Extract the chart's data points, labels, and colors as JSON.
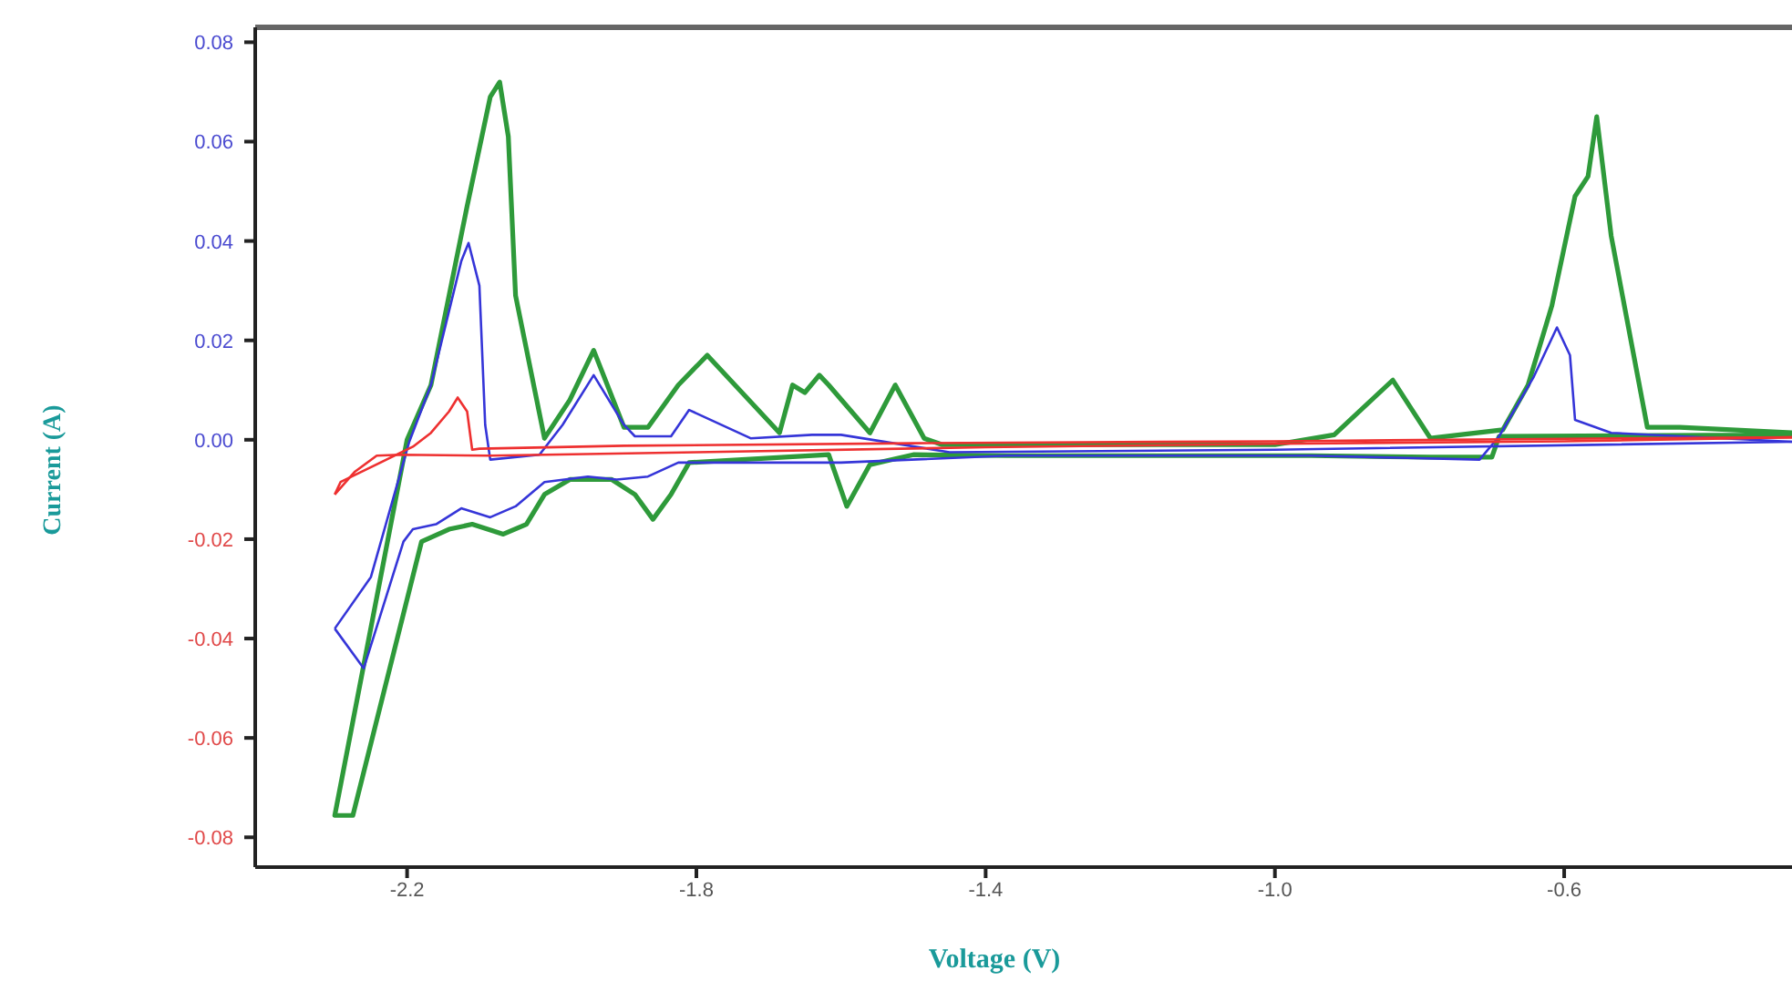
{
  "chart_data": {
    "type": "line",
    "xlabel": "Voltage (V)",
    "ylabel": "Current (A)",
    "xlim": [
      -2.41,
      -0.285
    ],
    "ylim": [
      -0.086,
      0.083
    ],
    "xticks": [
      -2.2,
      -1.8,
      -1.4,
      {
        "value": -1.0,
        "label": "-1.0"
      },
      -0.6
    ],
    "yticks": [
      0.08,
      0.06,
      0.04,
      0.02,
      {
        "value": 0,
        "label": "0.00"
      },
      -0.02,
      -0.04,
      -0.06,
      -0.08
    ],
    "grid": false,
    "legend": false,
    "marker": "none",
    "line_style": "solid",
    "series": [
      {
        "color": "#2e9a3a",
        "x": [
          -0.285,
          -0.44,
          -0.485,
          -0.535,
          -0.555,
          -0.567,
          -0.585,
          -0.617,
          -0.65,
          -0.685,
          -0.785,
          -0.837,
          -0.918,
          -1.0,
          -1.3,
          -1.46,
          -1.485,
          -1.525,
          -1.56,
          -1.617,
          -1.63,
          -1.65,
          -1.667,
          -1.685,
          -1.785,
          -1.825,
          -1.867,
          -1.9,
          -1.942,
          -1.975,
          -2.01,
          -2.05,
          -2.06,
          -2.072,
          -2.085,
          -2.117,
          -2.167,
          -2.2,
          -2.3,
          -2.275,
          -2.18,
          -2.142,
          -2.11,
          -2.067,
          -2.035,
          -2.01,
          -1.975,
          -1.917,
          -1.885,
          -1.86,
          -1.835,
          -1.81,
          -1.617,
          -1.592,
          -1.56,
          -1.5,
          -1.37,
          -0.95,
          -0.785,
          -0.7,
          -0.69,
          -0.285
        ],
        "values": [
          0.0014,
          0.0025,
          0.0025,
          0.041,
          0.065,
          0.053,
          0.049,
          0.027,
          0.011,
          0.002,
          0.0003,
          0.012,
          0.001,
          -0.001,
          -0.001,
          -0.001,
          0.0003,
          0.011,
          0.0014,
          0.011,
          0.013,
          0.0095,
          0.011,
          0.0014,
          0.017,
          0.011,
          0.0025,
          0.0025,
          0.018,
          0.008,
          0.0003,
          0.029,
          0.061,
          0.072,
          0.069,
          0.047,
          0.011,
          0,
          -0.0756,
          -0.0756,
          -0.0205,
          -0.018,
          -0.017,
          -0.019,
          -0.017,
          -0.011,
          -0.008,
          -0.008,
          -0.011,
          -0.016,
          -0.011,
          -0.0046,
          -0.003,
          -0.0134,
          -0.005,
          -0.003,
          -0.0032,
          -0.0032,
          -0.0035,
          -0.0035,
          0.0007,
          0.001
        ]
      },
      {
        "color": "#3535d8",
        "x": [
          -0.285,
          -1.0,
          -1.45,
          -1.6,
          -1.64,
          -1.725,
          -1.81,
          -1.835,
          -1.885,
          -1.9,
          -1.942,
          -1.985,
          -2.017,
          -2.085,
          -2.092,
          -2.1,
          -2.115,
          -2.125,
          -2.167,
          -2.197,
          -2.25,
          -2.3
        ],
        "values": [
          -0.0004,
          -0.002,
          -0.0025,
          0.001,
          0.001,
          0.0003,
          0.006,
          0.0007,
          0.0007,
          0.003,
          0.013,
          0.003,
          -0.003,
          -0.004,
          0.003,
          0.031,
          0.0396,
          0.036,
          0.011,
          -0.0004,
          -0.0276,
          -0.038
        ]
      },
      {
        "color": "#3535d8",
        "x": [
          -2.3,
          -2.26,
          -2.205,
          -2.192,
          -2.16,
          -2.125,
          -2.085,
          -2.05,
          -2.01,
          -1.95,
          -1.91,
          -1.867,
          -1.825,
          -1.6,
          -1.37,
          -0.95,
          -0.717,
          -0.69,
          -0.642,
          -0.61,
          -0.592,
          -0.585,
          -0.535,
          -0.285
        ],
        "values": [
          -0.038,
          -0.046,
          -0.0205,
          -0.018,
          -0.017,
          -0.0138,
          -0.0156,
          -0.0134,
          -0.0085,
          -0.0074,
          -0.008,
          -0.0074,
          -0.0046,
          -0.0046,
          -0.0032,
          -0.0032,
          -0.004,
          0.0007,
          0.0127,
          0.0226,
          0.017,
          0.004,
          0.0014,
          -0.0004
        ]
      },
      {
        "color": "#ee3030",
        "x": [
          -2.3,
          -2.272,
          -2.242,
          -2.21,
          -2.085,
          -1.8,
          -1.4,
          -1.0,
          -0.6,
          -0.285
        ],
        "values": [
          -0.011,
          -0.0064,
          -0.0032,
          -0.003,
          -0.0032,
          -0.0025,
          -0.0015,
          -0.0008,
          -0.0003,
          0.0005
        ]
      },
      {
        "color": "#ee3030",
        "x": [
          -0.285,
          -0.6,
          -1.0,
          -1.5,
          -1.9,
          -2.1,
          -2.11,
          -2.117,
          -2.13,
          -2.142,
          -2.167,
          -2.192,
          -2.292,
          -2.3
        ],
        "values": [
          0.0005,
          0.0002,
          -0.0003,
          -0.0007,
          -0.0012,
          -0.0018,
          -0.002,
          0.0057,
          0.0085,
          0.0057,
          0.0014,
          -0.0014,
          -0.0085,
          -0.011
        ]
      }
    ]
  }
}
